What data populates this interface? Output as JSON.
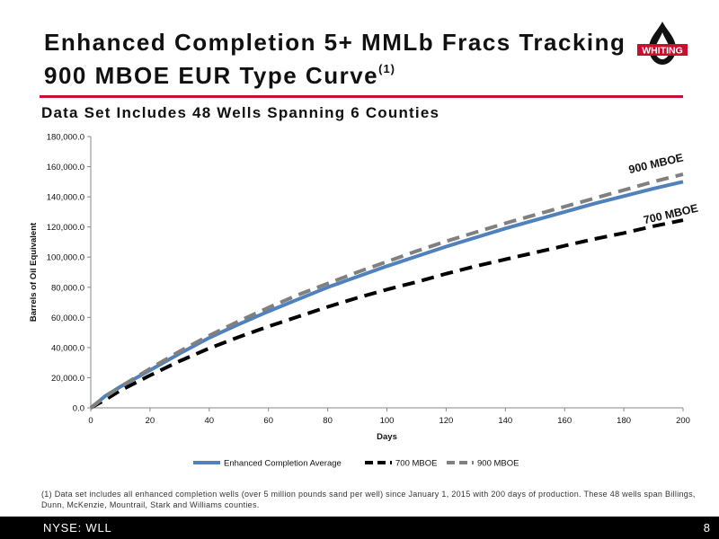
{
  "header": {
    "title_line1": "Enhanced Completion 5+ MMLb Fracs Tracking",
    "title_line2": "900 MBOE EUR Type Curve",
    "title_footnote_mark": "(1)",
    "subtitle": "Data Set Includes 48 Wells Spanning 6 Counties",
    "logo_text": "WHITING",
    "accent_color": "#c8102e"
  },
  "chart_data": {
    "type": "line",
    "xlabel": "Days",
    "ylabel": "Barrels of Oil Equivalent",
    "xlim": [
      0,
      200
    ],
    "ylim": [
      0,
      180000
    ],
    "x_ticks": [
      "0",
      "20",
      "40",
      "60",
      "80",
      "100",
      "120",
      "140",
      "160",
      "180",
      "200"
    ],
    "y_ticks": [
      "0.0",
      "20,000.0",
      "40,000.0",
      "60,000.0",
      "80,000.0",
      "100,000.0",
      "120,000.0",
      "140,000.0",
      "160,000.0",
      "180,000.0"
    ],
    "x_tick_values": [
      0,
      20,
      40,
      60,
      80,
      100,
      120,
      140,
      160,
      180,
      200
    ],
    "y_tick_values": [
      0,
      20000,
      40000,
      60000,
      80000,
      100000,
      120000,
      140000,
      160000,
      180000
    ],
    "grid": false,
    "legend_position": "bottom",
    "x": [
      0,
      5,
      10,
      20,
      30,
      40,
      50,
      60,
      70,
      80,
      90,
      100,
      110,
      120,
      130,
      140,
      150,
      160,
      170,
      180,
      190,
      200
    ],
    "series": [
      {
        "name": "Enhanced Completion Average",
        "color": "#4f81bd",
        "style": "solid",
        "values": [
          0,
          8000,
          14000,
          25000,
          36000,
          46500,
          55500,
          64000,
          72000,
          80000,
          87000,
          94000,
          100500,
          107000,
          113000,
          119000,
          124500,
          130000,
          135500,
          140500,
          145500,
          150000
        ]
      },
      {
        "name": "700 MBOE",
        "color": "#000000",
        "style": "dashed",
        "values": [
          0,
          5500,
          11500,
          21500,
          31000,
          39500,
          47000,
          54000,
          60500,
          67000,
          73000,
          78500,
          83500,
          89000,
          94000,
          98500,
          103000,
          107500,
          112000,
          116000,
          120500,
          124500
        ]
      },
      {
        "name": "900 MBOE",
        "color": "#808080",
        "style": "dashed",
        "values": [
          0,
          7500,
          14000,
          26000,
          37500,
          48000,
          57500,
          66500,
          75000,
          82500,
          90000,
          97000,
          104000,
          110500,
          116500,
          122500,
          128000,
          133500,
          139000,
          144500,
          150000,
          155000
        ]
      }
    ],
    "annotations": [
      {
        "text": "900 MBOE",
        "x": 182,
        "y": 155500
      },
      {
        "text": "700 MBOE",
        "x": 187,
        "y": 122000
      }
    ]
  },
  "footnote": "(1) Data set includes all enhanced completion wells (over 5 million pounds sand per well) since January 1, 2015 with 200 days of production.  These 48 wells span Billings, Dunn, McKenzie, Mountrail, Stark and Williams counties.",
  "footer": {
    "ticker": "NYSE:  WLL",
    "page_number": "8"
  }
}
